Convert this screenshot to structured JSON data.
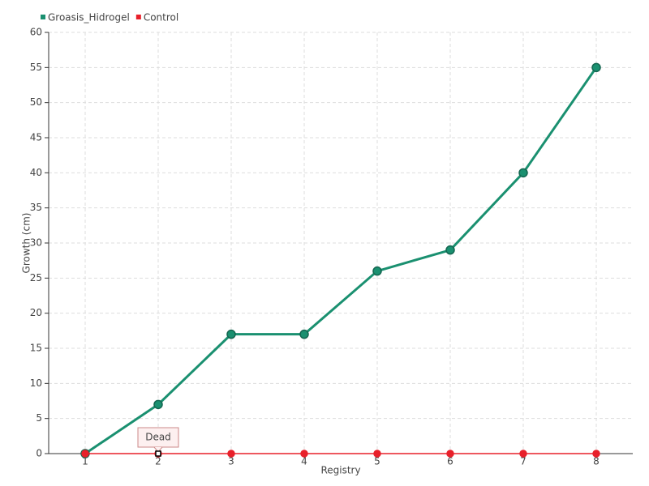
{
  "chart_data": {
    "type": "line",
    "x_label": "Registry",
    "y_label": "Growth (cm)",
    "categories": [
      "1",
      "2",
      "3",
      "4",
      "5",
      "6",
      "7",
      "8"
    ],
    "series": [
      {
        "name": "Groasis_Hidrogel",
        "color": "#1a9070",
        "values": [
          0,
          7,
          17,
          17,
          26,
          29,
          40,
          55
        ]
      },
      {
        "name": "Control",
        "color": "#e8202a",
        "values": [
          0,
          0,
          0,
          0,
          0,
          0,
          0,
          0
        ]
      }
    ],
    "annotation": "Dead",
    "ylim": [
      0,
      60
    ],
    "yticks": [
      0,
      5,
      10,
      15,
      20,
      25,
      30,
      35,
      40,
      45,
      50,
      55,
      60
    ],
    "grid": true,
    "legend": "top-left"
  }
}
